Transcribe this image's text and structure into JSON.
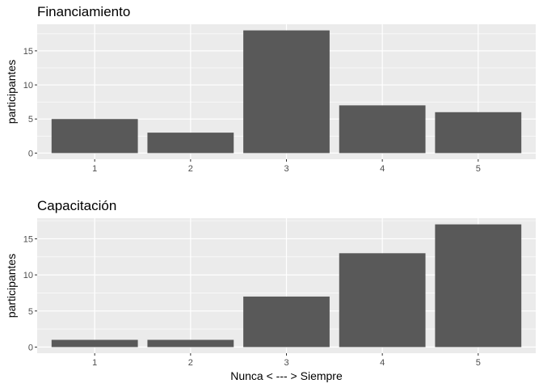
{
  "chart_data": [
    {
      "type": "bar",
      "title": "Financiamiento",
      "xlabel": "",
      "ylabel": "participantes",
      "categories": [
        "1",
        "2",
        "3",
        "4",
        "5"
      ],
      "values": [
        5,
        3,
        18,
        7,
        6
      ],
      "yticks": [
        "0",
        "5",
        "10",
        "15"
      ],
      "ylim": [
        0,
        18.9
      ],
      "grid": true,
      "bar_color": "#595959",
      "panel_background": "#ebebeb",
      "grid_color": "#ffffff"
    },
    {
      "type": "bar",
      "title": "Capacitación",
      "xlabel": "Nunca < --- > Siempre",
      "ylabel": "participantes",
      "categories": [
        "1",
        "2",
        "3",
        "4",
        "5"
      ],
      "values": [
        1,
        1,
        7,
        13,
        17
      ],
      "yticks": [
        "0",
        "5",
        "10",
        "15"
      ],
      "ylim": [
        0,
        17.85
      ],
      "grid": true,
      "bar_color": "#595959",
      "panel_background": "#ebebeb",
      "grid_color": "#ffffff"
    }
  ]
}
